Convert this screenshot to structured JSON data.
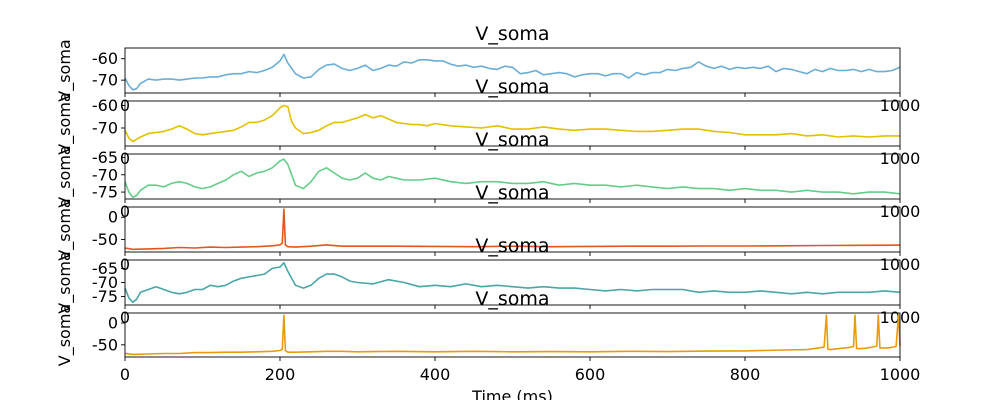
{
  "chart_data": [
    {
      "type": "line",
      "title": "V_soma",
      "ylabel": "V_soma",
      "xlabel": "",
      "xlim": [
        0,
        1000
      ],
      "ylim": [
        -76,
        -55
      ],
      "yticks": [
        -60,
        -70
      ],
      "xticks": [
        0,
        200,
        400,
        600,
        800,
        1000
      ],
      "grid": false,
      "series": [
        {
          "color": "#6aaed6",
          "x": [
            0,
            5,
            10,
            15,
            20,
            30,
            40,
            50,
            60,
            70,
            80,
            90,
            100,
            110,
            120,
            130,
            140,
            150,
            160,
            170,
            180,
            190,
            200,
            205,
            210,
            220,
            230,
            240,
            250,
            260,
            270,
            280,
            290,
            300,
            310,
            320,
            330,
            340,
            350,
            360,
            370,
            380,
            390,
            400,
            410,
            420,
            430,
            440,
            450,
            460,
            470,
            480,
            490,
            500,
            510,
            520,
            530,
            540,
            550,
            560,
            570,
            580,
            590,
            600,
            610,
            620,
            630,
            640,
            650,
            660,
            670,
            680,
            690,
            700,
            710,
            720,
            730,
            740,
            750,
            760,
            770,
            780,
            790,
            800,
            810,
            820,
            830,
            840,
            850,
            860,
            870,
            880,
            890,
            900,
            910,
            920,
            930,
            940,
            950,
            960,
            970,
            980,
            990,
            1000
          ],
          "values": [
            -69,
            -72.5,
            -74.5,
            -74,
            -71.5,
            -69.5,
            -70,
            -69.5,
            -69.5,
            -70,
            -69.5,
            -69,
            -69,
            -68.5,
            -68.5,
            -67.5,
            -67,
            -67,
            -66,
            -66.5,
            -65.5,
            -64,
            -61,
            -58,
            -62,
            -67,
            -69,
            -68.5,
            -65,
            -63,
            -62.5,
            -64.5,
            -65.5,
            -64.5,
            -63,
            -65.5,
            -64.5,
            -63,
            -63.5,
            -61.5,
            -62,
            -60.5,
            -60.5,
            -61,
            -61,
            -62.5,
            -63.5,
            -63,
            -64,
            -63.5,
            -64.5,
            -65,
            -63.5,
            -64,
            -67,
            -66.5,
            -65.5,
            -67.5,
            -67,
            -66.5,
            -67,
            -68.5,
            -67.5,
            -67,
            -67,
            -68,
            -67,
            -67,
            -69,
            -66.5,
            -67.5,
            -66.5,
            -66.5,
            -65,
            -65.5,
            -64.5,
            -64,
            -61.5,
            -63.5,
            -64.5,
            -63.5,
            -65,
            -64,
            -64.5,
            -64,
            -64.5,
            -63.5,
            -66,
            -64.5,
            -65,
            -66,
            -67,
            -65,
            -66,
            -64.5,
            -65.5,
            -65.5,
            -65,
            -66,
            -65,
            -66,
            -66,
            -65.5,
            -64
          ]
        }
      ]
    },
    {
      "type": "line",
      "title": "V_soma",
      "ylabel": "V_soma",
      "xlabel": "",
      "xlim": [
        0,
        1000
      ],
      "ylim": [
        -78,
        -58
      ],
      "yticks": [
        -60,
        -70
      ],
      "xticks": [
        0,
        200,
        400,
        600,
        800,
        1000
      ],
      "grid": false,
      "series": [
        {
          "color": "#e3c100",
          "x": [
            0,
            5,
            10,
            15,
            20,
            30,
            40,
            50,
            60,
            70,
            80,
            90,
            100,
            110,
            120,
            130,
            140,
            150,
            160,
            170,
            180,
            190,
            200,
            205,
            210,
            215,
            220,
            230,
            240,
            250,
            260,
            270,
            280,
            290,
            300,
            310,
            320,
            330,
            340,
            350,
            360,
            370,
            380,
            390,
            400,
            420,
            440,
            460,
            480,
            500,
            520,
            540,
            560,
            580,
            600,
            620,
            640,
            660,
            680,
            700,
            720,
            740,
            760,
            780,
            800,
            820,
            840,
            860,
            880,
            900,
            920,
            940,
            960,
            980,
            1000
          ],
          "values": [
            -71,
            -74.5,
            -76,
            -75,
            -74,
            -72.5,
            -72,
            -71.5,
            -70.5,
            -69,
            -70.5,
            -72.5,
            -73,
            -72.5,
            -72,
            -71.5,
            -71,
            -69.5,
            -67.5,
            -67.5,
            -66.5,
            -64.5,
            -61,
            -60,
            -60.5,
            -67,
            -70,
            -72.5,
            -72,
            -71,
            -69,
            -67.5,
            -67.5,
            -66.5,
            -65.5,
            -64,
            -65.5,
            -64.5,
            -66,
            -67.5,
            -68,
            -68.5,
            -68.5,
            -69,
            -68,
            -69,
            -69.5,
            -70,
            -69,
            -70.5,
            -70.5,
            -69.5,
            -70.5,
            -71,
            -70.5,
            -70.5,
            -71,
            -71.5,
            -71.5,
            -71,
            -70.5,
            -70.5,
            -71.5,
            -72,
            -73,
            -73,
            -73,
            -72.5,
            -73.5,
            -73,
            -74,
            -73.5,
            -74,
            -73.5,
            -73.5
          ]
        }
      ]
    },
    {
      "type": "line",
      "title": "V_soma",
      "ylabel": "V_soma",
      "xlabel": "",
      "xlim": [
        0,
        1000
      ],
      "ylim": [
        -77,
        -64
      ],
      "yticks": [
        -65,
        -70,
        -75
      ],
      "xticks": [
        0,
        200,
        400,
        600,
        800,
        1000
      ],
      "grid": false,
      "series": [
        {
          "color": "#66cc8a",
          "x": [
            0,
            5,
            10,
            15,
            20,
            30,
            40,
            50,
            60,
            70,
            80,
            90,
            100,
            110,
            120,
            130,
            140,
            150,
            160,
            170,
            180,
            190,
            200,
            205,
            210,
            220,
            230,
            240,
            250,
            260,
            270,
            280,
            290,
            300,
            310,
            320,
            330,
            340,
            350,
            360,
            380,
            400,
            420,
            440,
            460,
            480,
            500,
            520,
            540,
            560,
            580,
            600,
            620,
            640,
            660,
            680,
            700,
            720,
            740,
            760,
            780,
            800,
            820,
            840,
            860,
            880,
            900,
            920,
            940,
            960,
            980,
            1000
          ],
          "values": [
            -72,
            -75,
            -76.5,
            -76,
            -74.5,
            -73,
            -73,
            -73.5,
            -72.5,
            -72,
            -72.5,
            -73.5,
            -74,
            -73.5,
            -72.5,
            -71.5,
            -70,
            -69,
            -70.5,
            -69.5,
            -69,
            -68,
            -66,
            -65.5,
            -67,
            -73,
            -74,
            -72,
            -69,
            -68,
            -69.5,
            -71,
            -71.5,
            -71,
            -69.5,
            -71,
            -71.5,
            -70.5,
            -71,
            -71.5,
            -71.5,
            -71,
            -72,
            -72.5,
            -72,
            -72,
            -72.5,
            -72.5,
            -72,
            -73,
            -72.5,
            -73,
            -73,
            -73.5,
            -73,
            -73.5,
            -74,
            -73.5,
            -74,
            -74,
            -74.5,
            -74,
            -74.5,
            -74.5,
            -75,
            -74.5,
            -75,
            -75,
            -75.5,
            -75,
            -75,
            -75.5
          ]
        }
      ]
    },
    {
      "type": "line",
      "title": "V_soma",
      "ylabel": "V_soma",
      "xlabel": "",
      "xlim": [
        0,
        1000
      ],
      "ylim": [
        -78,
        23
      ],
      "yticks": [
        0,
        -50
      ],
      "xticks": [
        0,
        200,
        400,
        600,
        800,
        1000
      ],
      "grid": false,
      "series": [
        {
          "color": "#e2571e",
          "x": [
            0,
            10,
            30,
            50,
            70,
            90,
            110,
            130,
            150,
            170,
            190,
            200,
            203,
            205,
            207,
            210,
            220,
            240,
            260,
            280,
            300,
            350,
            400,
            450,
            500,
            550,
            600,
            650,
            700,
            750,
            800,
            850,
            900,
            950,
            1000
          ],
          "values": [
            -69,
            -72,
            -71,
            -70,
            -68,
            -69,
            -67,
            -68,
            -67,
            -66,
            -64,
            -62,
            -58,
            18,
            -62,
            -66,
            -67,
            -65,
            -62,
            -65,
            -65,
            -65,
            -65.5,
            -66,
            -65,
            -66,
            -65.5,
            -65,
            -65,
            -64.5,
            -64.5,
            -64,
            -63.5,
            -63,
            -62.5
          ]
        }
      ]
    },
    {
      "type": "line",
      "title": "V_soma",
      "ylabel": "V_soma",
      "xlabel": "",
      "xlim": [
        0,
        1000
      ],
      "ylim": [
        -78,
        -62
      ],
      "yticks": [
        -65,
        -70,
        -75
      ],
      "xticks": [
        0,
        200,
        400,
        600,
        800,
        1000
      ],
      "grid": false,
      "series": [
        {
          "color": "#4aa6a6",
          "x": [
            0,
            5,
            10,
            15,
            20,
            30,
            40,
            50,
            60,
            70,
            80,
            90,
            100,
            110,
            120,
            130,
            140,
            150,
            160,
            170,
            180,
            190,
            200,
            205,
            210,
            220,
            230,
            240,
            250,
            260,
            270,
            280,
            290,
            300,
            320,
            340,
            360,
            380,
            400,
            420,
            440,
            460,
            480,
            500,
            520,
            540,
            560,
            580,
            600,
            620,
            640,
            660,
            680,
            700,
            720,
            740,
            760,
            780,
            800,
            820,
            840,
            860,
            880,
            900,
            920,
            940,
            960,
            980,
            1000
          ],
          "values": [
            -72,
            -75.5,
            -77,
            -76,
            -73.5,
            -72.5,
            -71.5,
            -72.5,
            -73.5,
            -74,
            -73.5,
            -72.5,
            -72.5,
            -71,
            -71.5,
            -71,
            -69.5,
            -68.5,
            -68,
            -67.5,
            -67,
            -65,
            -64.5,
            -63,
            -66,
            -71,
            -72,
            -71,
            -68.5,
            -67,
            -67,
            -68,
            -69.5,
            -70,
            -70.5,
            -69,
            -70,
            -71.5,
            -71,
            -71.5,
            -70.5,
            -71.5,
            -71,
            -71.5,
            -72,
            -71.5,
            -72,
            -72,
            -72.5,
            -73,
            -72.5,
            -73,
            -72.5,
            -72.5,
            -72.5,
            -73.5,
            -73,
            -73.5,
            -73.5,
            -73,
            -73.5,
            -74,
            -73.5,
            -74,
            -73.5,
            -73.5,
            -73.5,
            -73,
            -73.5
          ]
        }
      ]
    },
    {
      "type": "line",
      "title": "V_soma",
      "ylabel": "V_soma",
      "xlabel": "Time (ms)",
      "xlim": [
        0,
        1000
      ],
      "ylim": [
        -78,
        23
      ],
      "yticks": [
        0,
        -50
      ],
      "xticks": [
        0,
        200,
        400,
        600,
        800,
        1000
      ],
      "xticklabels": [
        "0",
        "200",
        "400",
        "600",
        "800",
        "1000"
      ],
      "grid": false,
      "series": [
        {
          "color": "#e89c0d",
          "x": [
            0,
            10,
            30,
            50,
            70,
            90,
            110,
            130,
            150,
            170,
            190,
            200,
            203,
            205,
            207,
            210,
            220,
            240,
            260,
            280,
            300,
            350,
            400,
            450,
            500,
            550,
            600,
            650,
            700,
            750,
            800,
            850,
            880,
            895,
            902,
            905,
            907,
            910,
            920,
            935,
            940,
            942,
            944,
            946,
            955,
            965,
            970,
            972,
            974,
            985,
            995,
            998,
            1000
          ],
          "values": [
            -70,
            -72,
            -71,
            -70,
            -70,
            -68,
            -68,
            -67,
            -67,
            -66,
            -65,
            -63,
            -60,
            18,
            -63,
            -67,
            -67,
            -66,
            -65,
            -65,
            -66,
            -65,
            -66,
            -65,
            -66,
            -65.5,
            -66,
            -65,
            -65.5,
            -64.5,
            -64,
            -62,
            -61,
            -57,
            -55,
            18,
            -60,
            -61,
            -59,
            -56,
            -54,
            18,
            -58,
            -59,
            -58,
            -55,
            -53,
            18,
            -57,
            -57,
            -54,
            18,
            -52
          ]
        }
      ]
    }
  ]
}
